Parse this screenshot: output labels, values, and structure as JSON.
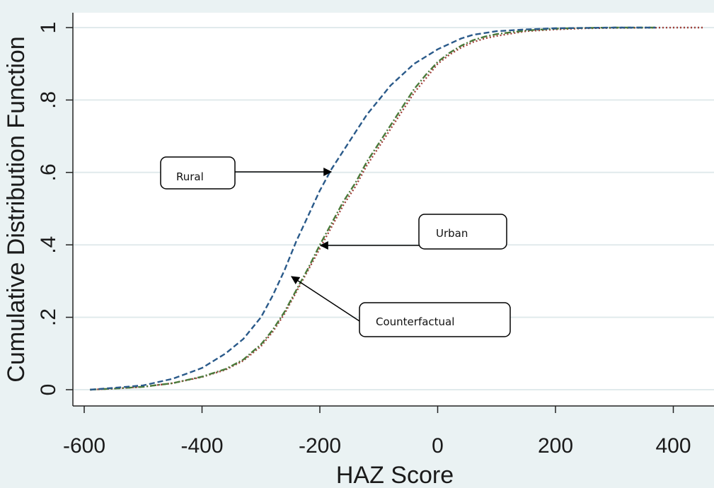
{
  "chart_data": {
    "type": "line",
    "title": "",
    "xlabel": "HAZ Score",
    "ylabel": "Cumulative Distribution Function",
    "xlim": [
      -600,
      460
    ],
    "ylim": [
      0,
      1
    ],
    "x_ticks": [
      -600,
      -400,
      -200,
      0,
      200,
      400
    ],
    "y_ticks": [
      0,
      0.2,
      0.4,
      0.6,
      0.8,
      1
    ],
    "y_tick_labels": [
      "0",
      ".2",
      ".4",
      ".6",
      ".8",
      "1"
    ],
    "grid": true,
    "series": [
      {
        "name": "Rural",
        "color": "#2a5a8a",
        "style": "dashed",
        "x": [
          -590,
          -550,
          -500,
          -450,
          -400,
          -360,
          -330,
          -300,
          -280,
          -260,
          -240,
          -220,
          -200,
          -180,
          -160,
          -140,
          -120,
          -100,
          -80,
          -60,
          -40,
          -20,
          0,
          20,
          40,
          60,
          80,
          100,
          150,
          200,
          250,
          300,
          370
        ],
        "y": [
          0.0,
          0.005,
          0.012,
          0.03,
          0.06,
          0.1,
          0.14,
          0.2,
          0.26,
          0.33,
          0.41,
          0.48,
          0.55,
          0.61,
          0.66,
          0.71,
          0.76,
          0.8,
          0.84,
          0.87,
          0.9,
          0.92,
          0.94,
          0.955,
          0.97,
          0.98,
          0.985,
          0.99,
          0.995,
          0.998,
          0.999,
          1.0,
          1.0
        ]
      },
      {
        "name": "Urban",
        "color": "#a0403a",
        "style": "dotted",
        "x": [
          -590,
          -550,
          -500,
          -450,
          -400,
          -360,
          -330,
          -300,
          -280,
          -260,
          -240,
          -220,
          -200,
          -180,
          -160,
          -140,
          -120,
          -100,
          -80,
          -60,
          -40,
          -20,
          0,
          20,
          40,
          60,
          80,
          100,
          150,
          200,
          250,
          300,
          400,
          450
        ],
        "y": [
          0.0,
          0.003,
          0.008,
          0.018,
          0.035,
          0.055,
          0.08,
          0.12,
          0.16,
          0.21,
          0.27,
          0.33,
          0.39,
          0.45,
          0.51,
          0.56,
          0.62,
          0.67,
          0.72,
          0.77,
          0.82,
          0.86,
          0.9,
          0.925,
          0.945,
          0.96,
          0.97,
          0.977,
          0.99,
          0.995,
          0.998,
          0.999,
          1.0,
          1.0
        ]
      },
      {
        "name": "Counterfactual",
        "color": "#4a7a3a",
        "style": "dashdot",
        "x": [
          -590,
          -550,
          -500,
          -450,
          -400,
          -360,
          -330,
          -300,
          -280,
          -260,
          -240,
          -220,
          -200,
          -180,
          -160,
          -140,
          -120,
          -100,
          -80,
          -60,
          -40,
          -20,
          0,
          20,
          40,
          60,
          80,
          100,
          150,
          200,
          250,
          300,
          370
        ],
        "y": [
          0.0,
          0.003,
          0.008,
          0.018,
          0.036,
          0.057,
          0.083,
          0.125,
          0.165,
          0.215,
          0.275,
          0.335,
          0.4,
          0.46,
          0.52,
          0.57,
          0.63,
          0.68,
          0.73,
          0.78,
          0.83,
          0.87,
          0.905,
          0.93,
          0.95,
          0.965,
          0.975,
          0.982,
          0.992,
          0.997,
          0.999,
          1.0,
          1.0
        ]
      }
    ],
    "annotations": [
      {
        "text": "Rural",
        "points_to": "Rural"
      },
      {
        "text": "Urban",
        "points_to": "Urban"
      },
      {
        "text": "Counterfactual",
        "points_to": "Counterfactual"
      }
    ]
  }
}
